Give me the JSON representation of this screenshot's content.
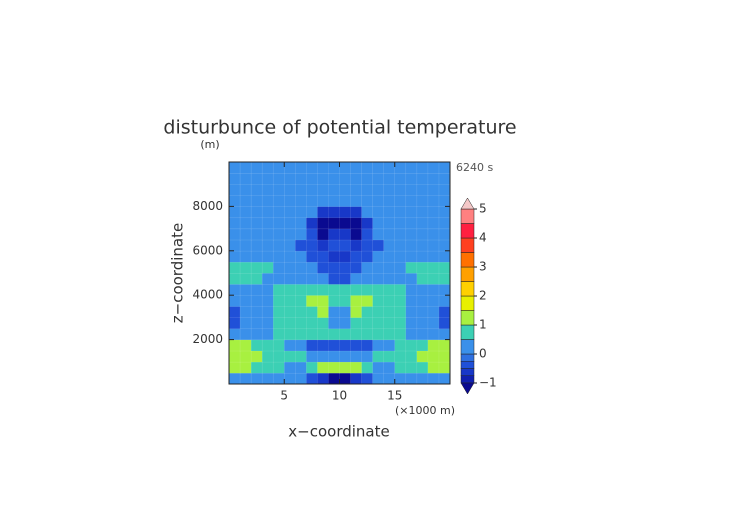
{
  "chart_data": {
    "type": "contour",
    "title": "disturbunce of potential temperature",
    "y_unit": "(m)",
    "time_label": "6240 s",
    "x_unit": "(×1000 m)",
    "xlabel": "x−coordinate",
    "ylabel": "z−coordinate",
    "xlim": [
      0,
      20
    ],
    "xticks": [
      5,
      10,
      15
    ],
    "ylim": [
      0,
      10000
    ],
    "yticks": [
      2000,
      4000,
      6000,
      8000
    ],
    "x": [
      0.5,
      1.5,
      2.5,
      3.5,
      4.5,
      5.5,
      6.5,
      7.5,
      8.5,
      9.5,
      10.5,
      11.5,
      12.5,
      13.5,
      14.5,
      15.5,
      16.5,
      17.5,
      18.5,
      19.5
    ],
    "y": [
      250,
      750,
      1250,
      1750,
      2250,
      2750,
      3250,
      3750,
      4250,
      4750,
      5250,
      5750,
      6250,
      6750,
      7250,
      7750,
      8250,
      8750,
      9250,
      9750
    ],
    "values": [
      [
        0.2,
        0.2,
        0.2,
        0.2,
        0.2,
        0.2,
        0.2,
        -0.3,
        -0.6,
        -1.2,
        -1.2,
        -0.6,
        -0.3,
        0.2,
        0.2,
        0.2,
        0.2,
        0.2,
        0.2,
        0.2
      ],
      [
        1.3,
        1.3,
        0.7,
        0.7,
        0.7,
        0.2,
        0.2,
        0.7,
        1.3,
        1.3,
        1.3,
        1.3,
        0.7,
        0.2,
        0.2,
        0.7,
        0.7,
        0.7,
        1.3,
        1.3
      ],
      [
        1.3,
        1.3,
        1.3,
        0.7,
        0.7,
        0.7,
        0.7,
        0.2,
        0.2,
        0.2,
        0.2,
        0.2,
        0.2,
        0.7,
        0.7,
        0.7,
        0.7,
        1.3,
        1.3,
        1.3
      ],
      [
        1.3,
        1.3,
        0.7,
        0.7,
        0.7,
        0.2,
        0.2,
        -0.3,
        -0.3,
        -0.3,
        -0.3,
        -0.3,
        -0.3,
        0.2,
        0.2,
        0.7,
        0.7,
        0.7,
        1.3,
        1.3
      ],
      [
        0.2,
        0.2,
        0.2,
        0.2,
        0.7,
        0.7,
        0.7,
        0.7,
        0.7,
        0.7,
        0.7,
        0.7,
        0.7,
        0.7,
        0.7,
        0.7,
        0.2,
        0.2,
        0.2,
        0.2
      ],
      [
        -0.3,
        0.2,
        0.2,
        0.2,
        0.7,
        0.7,
        0.7,
        0.7,
        0.7,
        0.2,
        0.2,
        0.7,
        0.7,
        0.7,
        0.7,
        0.7,
        0.2,
        0.2,
        0.2,
        -0.3
      ],
      [
        -0.3,
        0.2,
        0.2,
        0.2,
        0.7,
        0.7,
        0.7,
        0.7,
        1.3,
        0.2,
        0.2,
        1.3,
        0.7,
        0.7,
        0.7,
        0.7,
        0.2,
        0.2,
        0.2,
        -0.3
      ],
      [
        0.2,
        0.2,
        0.2,
        0.2,
        0.7,
        0.7,
        0.7,
        1.3,
        1.3,
        0.7,
        0.7,
        1.3,
        1.3,
        0.7,
        0.7,
        0.7,
        0.2,
        0.2,
        0.2,
        0.2
      ],
      [
        0.2,
        0.2,
        0.2,
        0.2,
        0.7,
        0.7,
        0.7,
        0.7,
        0.7,
        0.7,
        0.7,
        0.7,
        0.7,
        0.7,
        0.7,
        0.7,
        0.2,
        0.2,
        0.2,
        0.2
      ],
      [
        0.7,
        0.7,
        0.7,
        0.2,
        0.2,
        0.2,
        0.2,
        0.2,
        0.2,
        -0.3,
        -0.3,
        0.2,
        0.2,
        0.2,
        0.2,
        0.2,
        0.2,
        0.7,
        0.7,
        0.7
      ],
      [
        0.7,
        0.7,
        0.7,
        0.7,
        0.2,
        0.2,
        0.2,
        0.2,
        -0.3,
        -0.3,
        -0.3,
        -0.3,
        0.2,
        0.2,
        0.2,
        0.2,
        0.7,
        0.7,
        0.7,
        0.7
      ],
      [
        0.2,
        0.2,
        0.2,
        0.2,
        0.2,
        0.2,
        0.2,
        -0.3,
        -0.3,
        -0.6,
        -0.6,
        -0.3,
        -0.3,
        0.2,
        0.2,
        0.2,
        0.2,
        0.2,
        0.2,
        0.2
      ],
      [
        0.2,
        0.2,
        0.2,
        0.2,
        0.2,
        0.2,
        -0.3,
        -0.3,
        -0.6,
        -0.3,
        -0.3,
        -0.6,
        -0.3,
        -0.3,
        0.2,
        0.2,
        0.2,
        0.2,
        0.2,
        0.2
      ],
      [
        0.2,
        0.2,
        0.2,
        0.2,
        0.2,
        0.2,
        0.2,
        -0.3,
        -1.2,
        -0.6,
        -0.6,
        -1.2,
        -0.3,
        0.2,
        0.2,
        0.2,
        0.2,
        0.2,
        0.2,
        0.2
      ],
      [
        0.2,
        0.2,
        0.2,
        0.2,
        0.2,
        0.2,
        0.2,
        -0.6,
        -1.2,
        -1.2,
        -1.2,
        -1.2,
        -0.6,
        0.2,
        0.2,
        0.2,
        0.2,
        0.2,
        0.2,
        0.2
      ],
      [
        0.2,
        0.2,
        0.2,
        0.2,
        0.2,
        0.2,
        0.2,
        0.2,
        -0.6,
        -0.6,
        -0.6,
        -0.6,
        0.2,
        0.2,
        0.2,
        0.2,
        0.2,
        0.2,
        0.2,
        0.2
      ],
      [
        0.2,
        0.2,
        0.2,
        0.2,
        0.2,
        0.2,
        0.2,
        0.2,
        0.2,
        0.2,
        0.2,
        0.2,
        0.2,
        0.2,
        0.2,
        0.2,
        0.2,
        0.2,
        0.2,
        0.2
      ],
      [
        0.2,
        0.2,
        0.2,
        0.2,
        0.2,
        0.2,
        0.2,
        0.2,
        0.2,
        0.2,
        0.2,
        0.2,
        0.2,
        0.2,
        0.2,
        0.2,
        0.2,
        0.2,
        0.2,
        0.2
      ],
      [
        0.2,
        0.2,
        0.2,
        0.2,
        0.2,
        0.2,
        0.2,
        0.2,
        0.2,
        0.2,
        0.2,
        0.2,
        0.2,
        0.2,
        0.2,
        0.2,
        0.2,
        0.2,
        0.2,
        0.2
      ],
      [
        0.2,
        0.2,
        0.2,
        0.2,
        0.2,
        0.2,
        0.2,
        0.2,
        0.2,
        0.2,
        0.2,
        0.2,
        0.2,
        0.2,
        0.2,
        0.2,
        0.2,
        0.2,
        0.2,
        0.2
      ]
    ],
    "levels": [
      -1,
      -0.75,
      -0.5,
      -0.25,
      0,
      0.5,
      1,
      1.5,
      2,
      2.5,
      3,
      3.5,
      4,
      4.5,
      5
    ],
    "colors": [
      "#0a0a90",
      "#1020b0",
      "#1838c8",
      "#2050d8",
      "#2e70e0",
      "#3a90ea",
      "#3cd0b4",
      "#a8f040",
      "#e8f000",
      "#ffd000",
      "#ffa000",
      "#ff7000",
      "#ff4020",
      "#ff2040",
      "#ff8080",
      "#f4c8c8"
    ],
    "colorbar_ticks": [
      {
        "value": -1,
        "label": "−1"
      },
      0,
      1,
      2,
      3,
      4,
      5
    ]
  }
}
